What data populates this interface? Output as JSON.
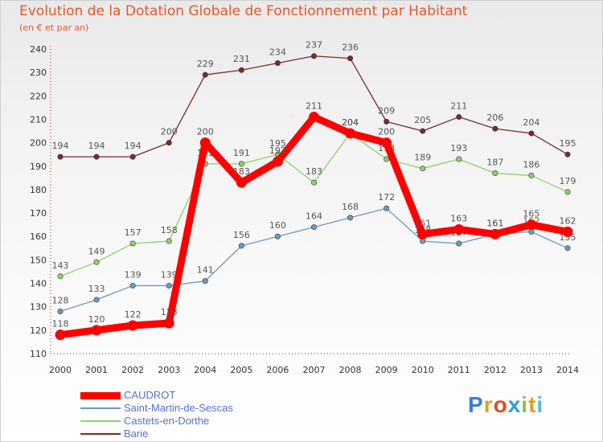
{
  "header": {
    "title": "Evolution de la Dotation Globale de Fonctionnement par Habitant",
    "subtitle": "(en € et par an)"
  },
  "chart_data": {
    "type": "line",
    "title": "Evolution de la Dotation Globale de Fonctionnement par Habitant",
    "subtitle": "(en € et par an)",
    "xlabel": "",
    "ylabel": "",
    "x": [
      "2000",
      "2001",
      "2002",
      "2003",
      "2004",
      "2005",
      "2006",
      "2007",
      "2008",
      "2009",
      "2010",
      "2011",
      "2012",
      "2013",
      "2014"
    ],
    "ylim": [
      110,
      240
    ],
    "yticks": [
      110,
      120,
      130,
      140,
      150,
      160,
      170,
      180,
      190,
      200,
      210,
      220,
      230,
      240
    ],
    "grid": false,
    "legend_position": "bottom-left",
    "series": [
      {
        "name": "CAUDROT",
        "color": "#ff0000",
        "values": [
          118,
          120,
          122,
          123,
          200,
          183,
          192,
          211,
          204,
          200,
          161,
          163,
          161,
          165,
          162
        ]
      },
      {
        "name": "Saint-Martin-de-Sescas",
        "color": "#6b9ac4",
        "values": [
          128,
          133,
          139,
          139,
          141,
          156,
          160,
          164,
          168,
          172,
          158,
          157,
          161,
          162,
          155
        ]
      },
      {
        "name": "Castets-en-Dorthe",
        "color": "#8fd16a",
        "values": [
          143,
          149,
          157,
          158,
          191,
          191,
          195,
          183,
          204,
          193,
          189,
          193,
          187,
          186,
          179
        ]
      },
      {
        "name": "Barie",
        "color": "#7b2a2a",
        "values": [
          194,
          194,
          194,
          200,
          229,
          231,
          234,
          237,
          236,
          209,
          205,
          211,
          206,
          204,
          195
        ]
      }
    ]
  },
  "logo": {
    "letters": [
      "P",
      "r",
      "o",
      "x",
      "i",
      "t",
      "i"
    ],
    "colors": [
      "#3a7fd6",
      "#e0a020",
      "#e24a2a",
      "#2f9fd8",
      "#8bc34a",
      "#e0a020",
      "#5bb8e0"
    ]
  }
}
